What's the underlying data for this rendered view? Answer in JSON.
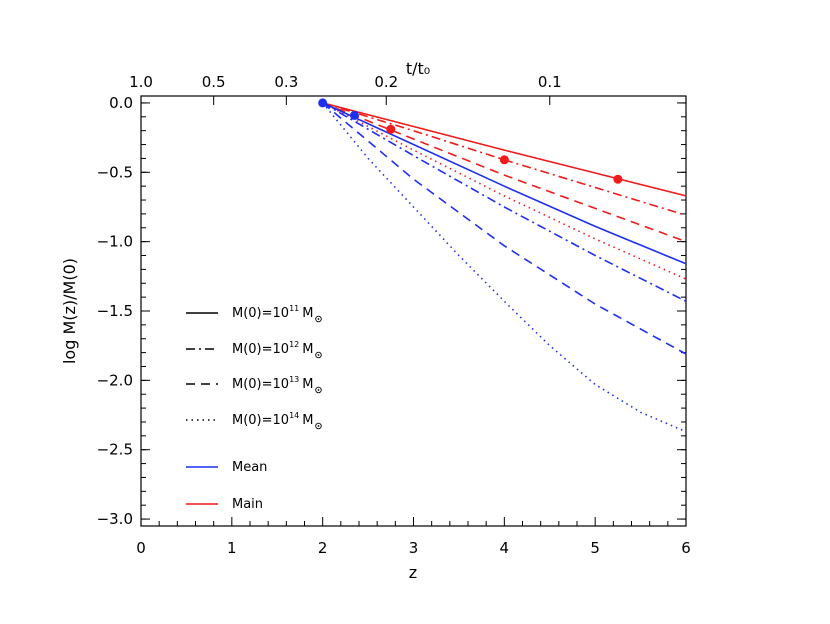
{
  "chart_data": {
    "type": "line",
    "xlabel": "z",
    "ylabel": "log M(z)/M(0)",
    "top_xlabel": "t/t₀",
    "xlim": [
      0,
      6
    ],
    "ylim": [
      -3.05,
      0.05
    ],
    "x_ticks": [
      "0",
      "1",
      "2",
      "3",
      "4",
      "5",
      "6"
    ],
    "y_ticks": [
      "0.0",
      "−0.5",
      "−1.0",
      "−1.5",
      "−2.0",
      "−2.5",
      "−3.0"
    ],
    "y_tick_values": [
      0.0,
      -0.5,
      -1.0,
      -1.5,
      -2.0,
      -2.5,
      -3.0
    ],
    "top_ticks": [
      {
        "label": "1.0",
        "z": 0.0
      },
      {
        "label": "0.5",
        "z": 0.8
      },
      {
        "label": "0.3",
        "z": 1.6
      },
      {
        "label": "0.2",
        "z": 2.7
      },
      {
        "label": "0.1",
        "z": 4.5
      }
    ],
    "start_z": 2.0,
    "colors": {
      "mean": "#1f2ff0",
      "main": "#f01a1a"
    },
    "series": [
      {
        "group": "Main",
        "mass": "10^11",
        "style": "solid",
        "color": "#f01a1a",
        "x": [
          2,
          3,
          4,
          5,
          6
        ],
        "y": [
          0.0,
          -0.17,
          -0.34,
          -0.505,
          -0.67
        ]
      },
      {
        "group": "Main",
        "mass": "10^12",
        "style": "dashdot",
        "color": "#f01a1a",
        "x": [
          2,
          3,
          4,
          5,
          6
        ],
        "y": [
          0.0,
          -0.2,
          -0.41,
          -0.61,
          -0.81
        ]
      },
      {
        "group": "Main",
        "mass": "10^13",
        "style": "dashed",
        "color": "#f01a1a",
        "x": [
          2,
          3,
          4,
          5,
          6
        ],
        "y": [
          0.0,
          -0.26,
          -0.52,
          -0.76,
          -1.0
        ]
      },
      {
        "group": "Main",
        "mass": "10^14",
        "style": "dotted",
        "color": "#f01a1a",
        "x": [
          2,
          3,
          4,
          5,
          6
        ],
        "y": [
          0.0,
          -0.34,
          -0.67,
          -0.98,
          -1.27
        ]
      },
      {
        "group": "Mean",
        "mass": "10^11",
        "style": "solid",
        "color": "#1f2ff0",
        "x": [
          2,
          3,
          4,
          5,
          6
        ],
        "y": [
          0.0,
          -0.3,
          -0.6,
          -0.89,
          -1.16
        ]
      },
      {
        "group": "Mean",
        "mass": "10^12",
        "style": "dashdot",
        "color": "#1f2ff0",
        "x": [
          2,
          3,
          4,
          5,
          6
        ],
        "y": [
          0.0,
          -0.38,
          -0.75,
          -1.1,
          -1.43
        ]
      },
      {
        "group": "Mean",
        "mass": "10^13",
        "style": "dashed",
        "color": "#1f2ff0",
        "x": [
          2,
          3,
          4,
          5,
          6
        ],
        "y": [
          0.0,
          -0.55,
          -1.03,
          -1.45,
          -1.81
        ]
      },
      {
        "group": "Mean",
        "mass": "10^14",
        "style": "dotted",
        "color": "#1f2ff0",
        "x": [
          2,
          2.5,
          3,
          3.5,
          4,
          4.5,
          5,
          5.5,
          6
        ],
        "y": [
          0.0,
          -0.4,
          -0.75,
          -1.1,
          -1.43,
          -1.75,
          -2.03,
          -2.23,
          -2.37
        ]
      }
    ],
    "markers": [
      {
        "color": "#1f2ff0",
        "x": 2.0,
        "y": 0.0
      },
      {
        "color": "#1f2ff0",
        "x": 2.35,
        "y": -0.09
      },
      {
        "color": "#f01a1a",
        "x": 2.75,
        "y": -0.19
      },
      {
        "color": "#f01a1a",
        "x": 4.0,
        "y": -0.41
      },
      {
        "color": "#f01a1a",
        "x": 5.25,
        "y": -0.55
      }
    ],
    "legend": {
      "placement": "lower-left",
      "entries": [
        {
          "prefix": "M(0)=10",
          "exp": "11",
          "unit": "M",
          "style": "solid",
          "color": "#000000"
        },
        {
          "prefix": "M(0)=10",
          "exp": "12",
          "unit": "M",
          "style": "dashdot",
          "color": "#000000"
        },
        {
          "prefix": "M(0)=10",
          "exp": "13",
          "unit": "M",
          "style": "dashed",
          "color": "#000000"
        },
        {
          "prefix": "M(0)=10",
          "exp": "14",
          "unit": "M",
          "style": "dotted",
          "color": "#000000"
        },
        {
          "prefix": "Mean",
          "style": "solid",
          "color": "#1f2ff0"
        },
        {
          "prefix": "Main",
          "style": "solid",
          "color": "#f01a1a"
        }
      ]
    },
    "grid": false
  }
}
